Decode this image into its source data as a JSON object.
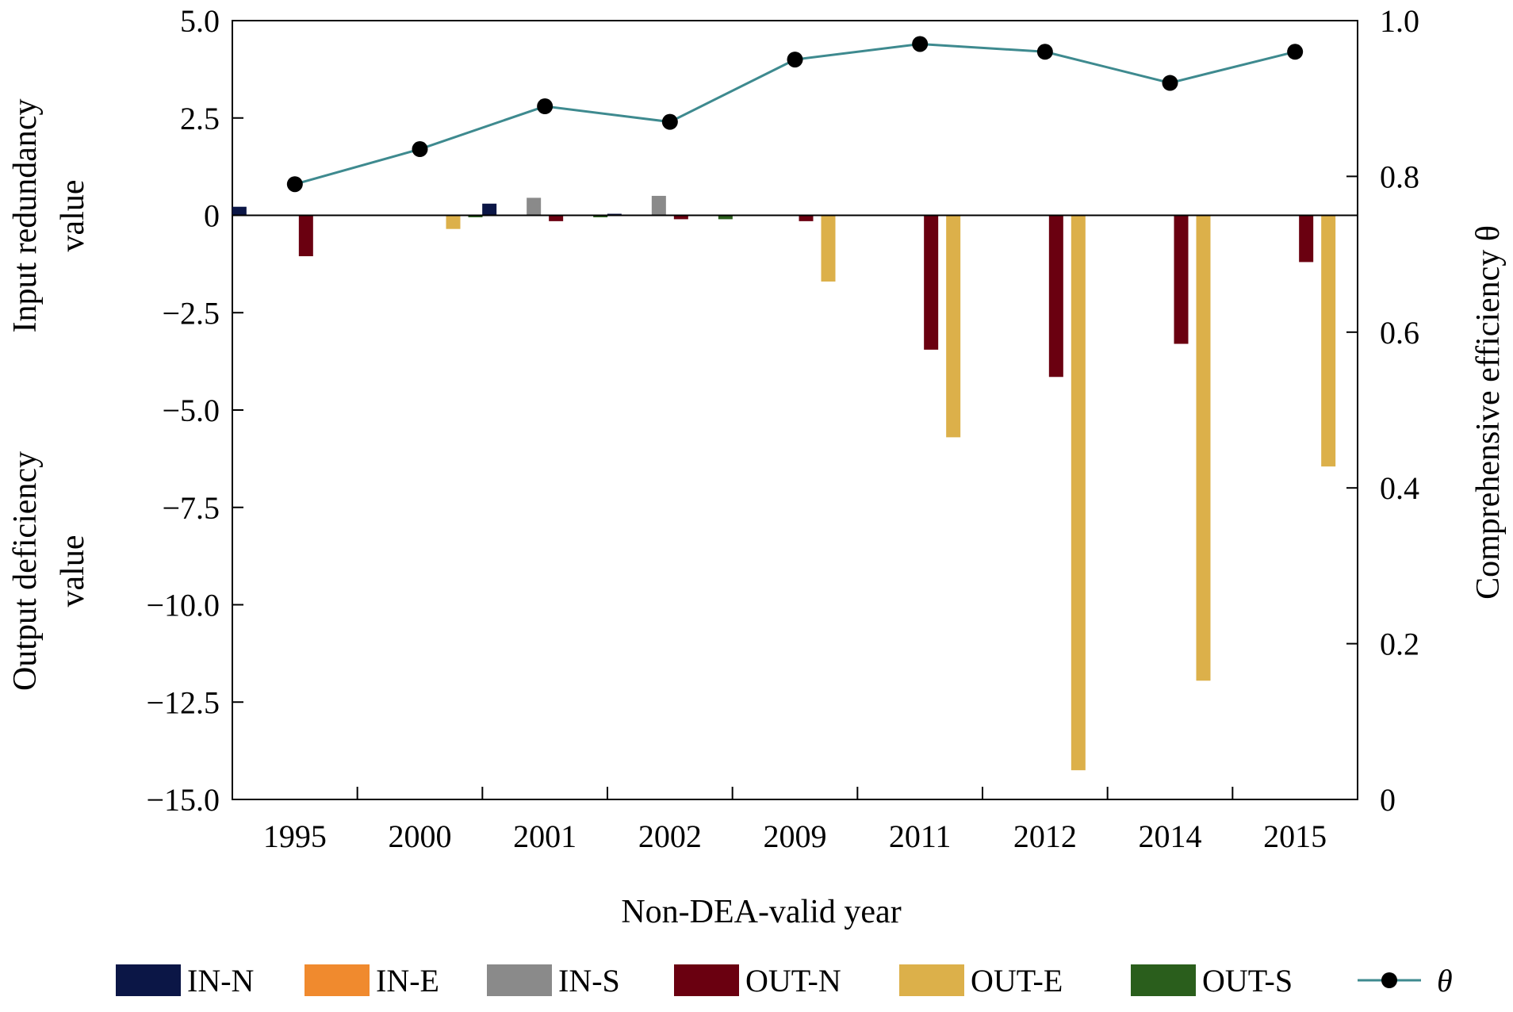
{
  "chart_data": {
    "type": "bar",
    "title": "",
    "xlabel": "Non-DEA-valid year",
    "ylabel_left_top": [
      "Input redundancy",
      "value"
    ],
    "ylabel_left_bottom": [
      "Output deficiency",
      "value"
    ],
    "ylabel_right": "Comprehensive efficiency θ",
    "categories": [
      "1995",
      "2000",
      "2001",
      "2002",
      "2009",
      "2011",
      "2012",
      "2014",
      "2015"
    ],
    "ylim": [
      -15.0,
      5.0
    ],
    "yticks": [
      "5.0",
      "2.5",
      "0",
      "−2.5",
      "−5.0",
      "−7.5",
      "−10.0",
      "−12.5",
      "−15.0"
    ],
    "ytick_values": [
      5.0,
      2.5,
      0,
      -2.5,
      -5.0,
      -7.5,
      -10.0,
      -12.5,
      -15.0
    ],
    "y2lim": [
      0,
      1.0
    ],
    "y2ticks": [
      "1.0",
      "0.8",
      "0.6",
      "0.4",
      "0.2",
      "0"
    ],
    "y2tick_values": [
      1.0,
      0.8,
      0.6,
      0.4,
      0.2,
      0
    ],
    "legend_position": "bottom",
    "series": [
      {
        "name": "IN-N",
        "color": "#0b1646",
        "values": [
          0.22,
          0,
          0.3,
          0.04,
          0,
          0,
          0,
          0,
          0
        ]
      },
      {
        "name": "IN-E",
        "color": "#f08a2e",
        "values": [
          0,
          0,
          0,
          0,
          0,
          0,
          0,
          0,
          0
        ]
      },
      {
        "name": "IN-S",
        "color": "#8a8a8a",
        "values": [
          0,
          0,
          0.45,
          0.5,
          0,
          0,
          0,
          0,
          0
        ]
      },
      {
        "name": "OUT-N",
        "color": "#6a0010",
        "values": [
          -1.05,
          0,
          -0.15,
          -0.1,
          -0.15,
          -3.45,
          -4.15,
          -3.3,
          -1.2
        ]
      },
      {
        "name": "OUT-E",
        "color": "#dcb04a",
        "values": [
          0,
          -0.35,
          0,
          0,
          -1.7,
          -5.7,
          -14.25,
          -11.95,
          -6.45
        ]
      },
      {
        "name": "OUT-S",
        "color": "#2a5e1c",
        "values": [
          0,
          -0.05,
          -0.05,
          -0.1,
          0,
          0,
          0,
          0,
          0
        ]
      }
    ],
    "line": {
      "name": "θ",
      "color": "#3e8a8f",
      "marker_color": "#000000",
      "values": [
        0.79,
        0.835,
        0.89,
        0.87,
        0.95,
        0.97,
        0.96,
        0.92,
        0.96
      ]
    }
  }
}
